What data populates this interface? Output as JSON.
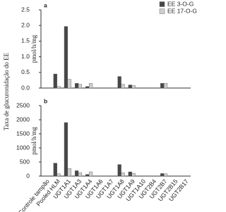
{
  "ylabel": "Taxa de glucuronidação do EE",
  "chart_data": [
    {
      "type": "bar",
      "panel": "a",
      "ylabel": "pmol/h/mg",
      "ylim": [
        0,
        2.5
      ],
      "yticks": [
        {
          "value": 0,
          "label": "0.0"
        },
        {
          "value": 0.5,
          "label": "0.5"
        },
        {
          "value": 1,
          "label": "1.0"
        },
        {
          "value": 1.5,
          "label": "1.5"
        },
        {
          "value": 2,
          "label": "2.0"
        },
        {
          "value": 2.5,
          "label": "2.5"
        }
      ],
      "series": [
        {
          "name": "EE 3-O-G",
          "color": "#474747",
          "values": [
            0,
            0.45,
            1.97,
            0.15,
            0.05,
            0,
            0,
            0.37,
            0.1,
            0,
            0,
            0.15,
            0,
            0
          ]
        },
        {
          "name": "EE 17-O-G",
          "color": "#cfcfcf",
          "values": [
            0,
            0.05,
            0.28,
            0.12,
            0.15,
            0,
            0,
            0.12,
            0.08,
            0,
            0,
            0.15,
            0,
            0
          ]
        }
      ]
    },
    {
      "type": "bar",
      "panel": "b",
      "ylabel": "pmol/h/mg",
      "ylim": [
        0,
        2500
      ],
      "yticks": [
        0,
        500,
        1000,
        1500,
        2000,
        2500
      ],
      "categories": [
        "Controle tampão",
        "Pooled HLM",
        "UGT1A1",
        "UGT1A3",
        "UGT1A4",
        "UGT1A6",
        "UGT1A7",
        "UGT1A8",
        "UGT1A9",
        "UGT1A10",
        "UGT2B4",
        "UGT2B7",
        "UGT2B15",
        "UGT2B17"
      ],
      "series": [
        {
          "color": "#474747",
          "values": [
            0,
            460,
            1900,
            190,
            60,
            0,
            0,
            410,
            150,
            0,
            0,
            90,
            0,
            0
          ]
        },
        {
          "color": "#cfcfcf",
          "values": [
            0,
            80,
            270,
            120,
            150,
            0,
            0,
            120,
            100,
            0,
            0,
            80,
            0,
            0
          ]
        }
      ]
    }
  ]
}
